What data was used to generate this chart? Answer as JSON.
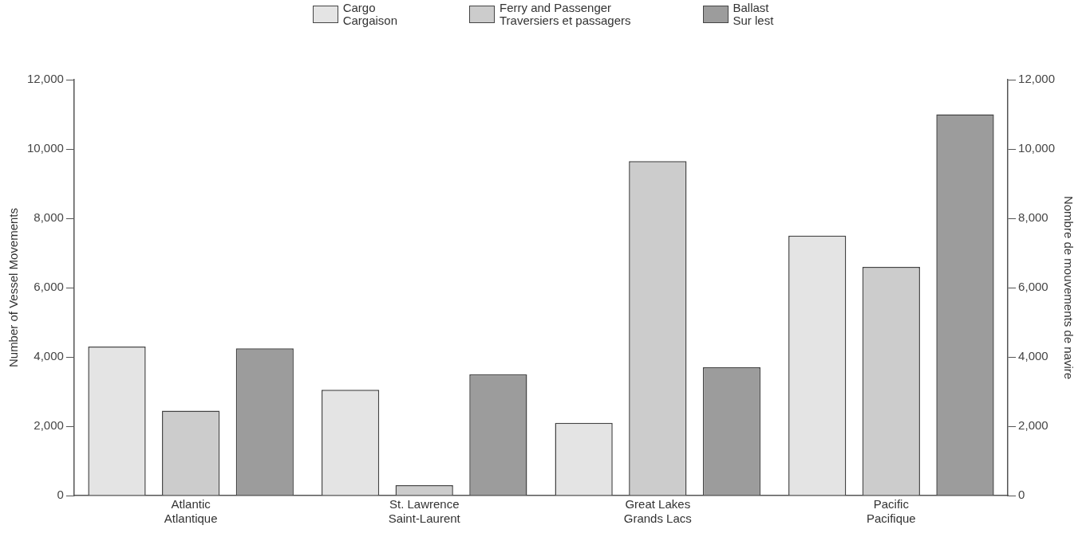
{
  "chart_data": {
    "type": "bar",
    "categories": [
      "Atlantic\nAtlantique",
      "St. Lawrence\nSaint-Laurent",
      "Great Lakes\nGrands Lacs",
      "Pacific\nPacifique"
    ],
    "series": [
      {
        "name": "Cargo\nCargaison",
        "color": "#e4e4e4",
        "values": [
          4300,
          3050,
          2100,
          7500
        ]
      },
      {
        "name": "Ferry and Passenger\nTraversiers et passagers",
        "color": "#cccccc",
        "values": [
          2450,
          300,
          9650,
          6600
        ]
      },
      {
        "name": "Ballast\nSur lest",
        "color": "#9c9c9c",
        "values": [
          4250,
          3500,
          3700,
          11000
        ]
      }
    ],
    "ylabel": "Number of Vessel Movements",
    "y2label": "Nombre de mouvements de navire",
    "ylim": [
      0,
      12000
    ],
    "yticks": [
      0,
      {
        "value": 2000,
        "label": "2,000"
      },
      {
        "value": 4000,
        "label": "4,000"
      },
      {
        "value": 6000,
        "label": "6,000"
      },
      {
        "value": 8000,
        "label": "8,000"
      },
      {
        "value": 10000,
        "label": "10,000"
      },
      {
        "value": 12000,
        "label": "12,000"
      }
    ],
    "y2lim": [
      0,
      12000
    ],
    "y2ticks": [
      0,
      {
        "value": 2000,
        "label": "2,000"
      },
      {
        "value": 4000,
        "label": "4,000"
      },
      {
        "value": 6000,
        "label": "6,000"
      },
      {
        "value": 8000,
        "label": "8,000"
      },
      {
        "value": 10000,
        "label": "10,000"
      },
      {
        "value": 12000,
        "label": "12,000"
      }
    ],
    "grid": false,
    "legend": "top"
  }
}
